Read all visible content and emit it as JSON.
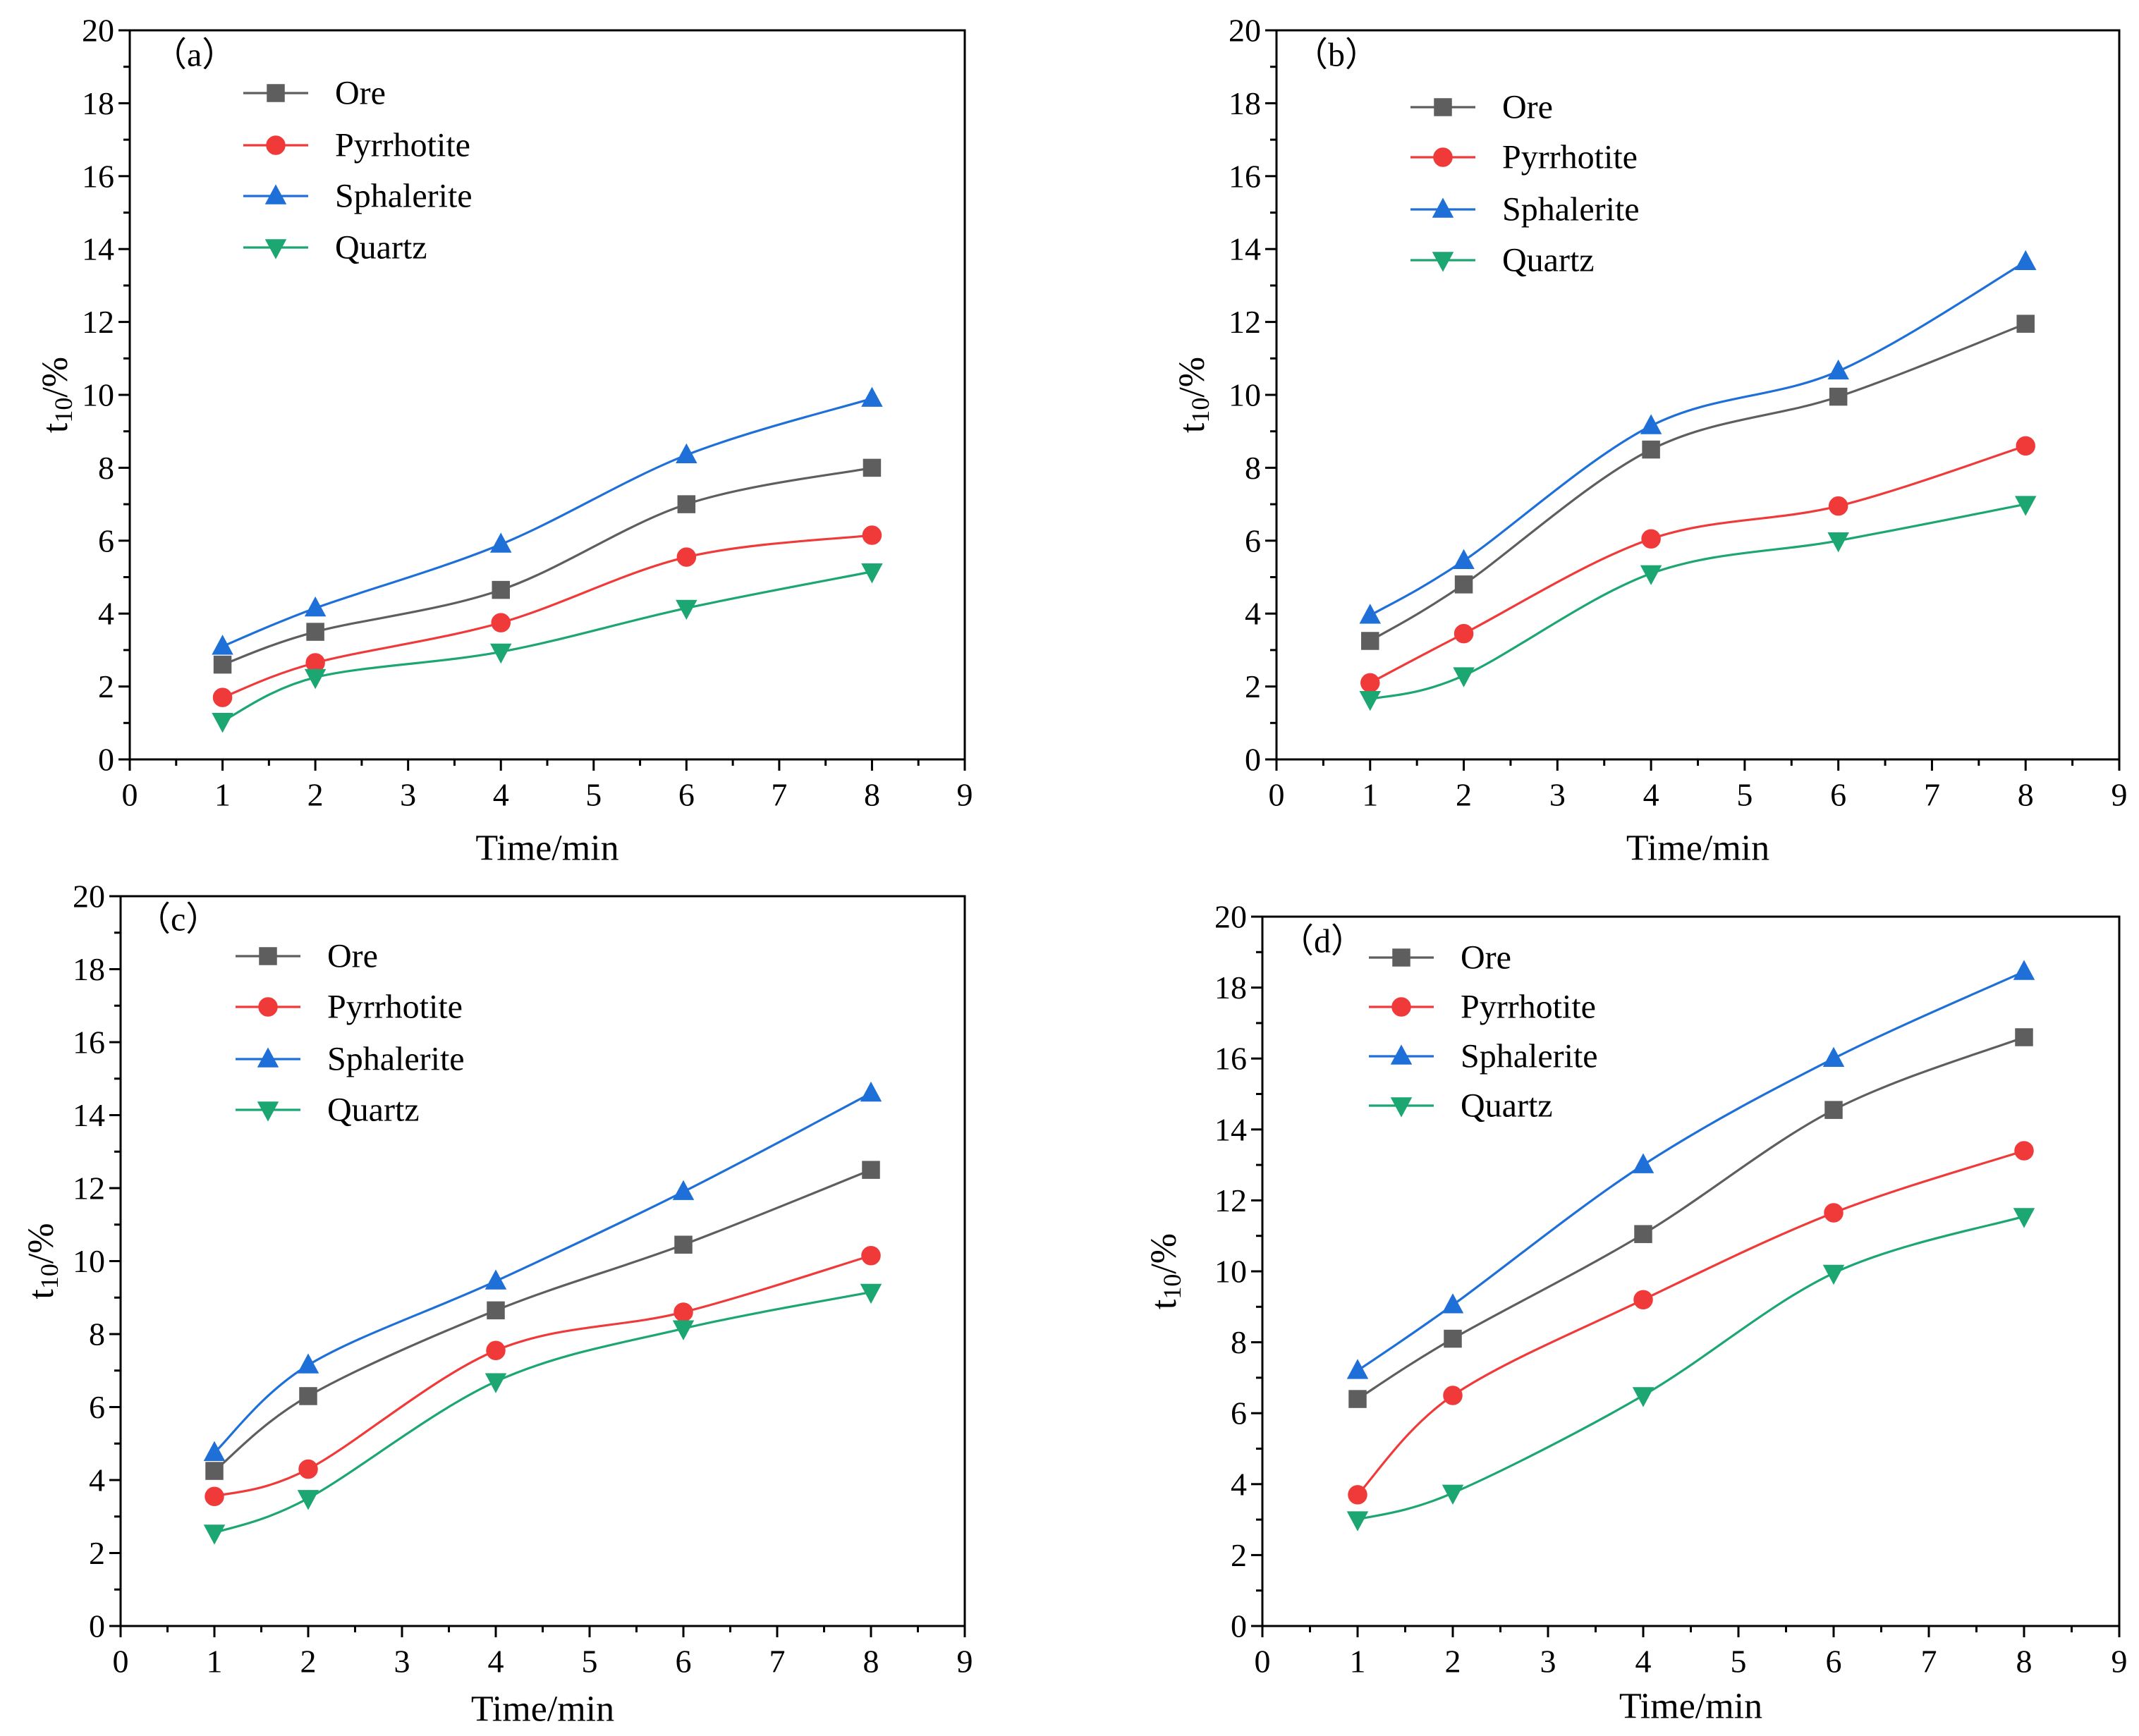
{
  "chart_data": [
    {
      "type": "line",
      "panel_label": "（a）",
      "title": "",
      "xlabel": "Time/min",
      "ylabel": {
        "base": "t",
        "sub": "10",
        "suffix": "/%"
      },
      "xlim": [
        0,
        9
      ],
      "ylim": [
        0,
        20
      ],
      "xticks": [
        0,
        1,
        2,
        3,
        4,
        5,
        6,
        7,
        8,
        9
      ],
      "yticks": [
        0,
        2,
        4,
        6,
        8,
        10,
        12,
        14,
        16,
        18,
        20
      ],
      "x": [
        1,
        2,
        4,
        6,
        8
      ],
      "series": [
        {
          "name": "Ore",
          "marker": "square",
          "color": "#5e5e5e",
          "values": [
            2.6,
            3.5,
            4.65,
            7.0,
            8.0
          ]
        },
        {
          "name": "Pyrrhotite",
          "marker": "circle",
          "color": "#f03a3a",
          "values": [
            1.7,
            2.65,
            3.75,
            5.55,
            6.15
          ]
        },
        {
          "name": "Sphalerite",
          "marker": "triangle-up",
          "color": "#1e70d8",
          "values": [
            3.1,
            4.15,
            5.9,
            8.35,
            9.9
          ]
        },
        {
          "name": "Quartz",
          "marker": "triangle-down",
          "color": "#1ba672",
          "values": [
            1.05,
            2.25,
            2.95,
            4.15,
            5.15
          ]
        }
      ]
    },
    {
      "type": "line",
      "panel_label": "（b）",
      "title": "",
      "xlabel": "Time/min",
      "ylabel": {
        "base": "t",
        "sub": "10",
        "suffix": "/%"
      },
      "xlim": [
        0,
        9
      ],
      "ylim": [
        0,
        20
      ],
      "xticks": [
        0,
        1,
        2,
        3,
        4,
        5,
        6,
        7,
        8,
        9
      ],
      "yticks": [
        0,
        2,
        4,
        6,
        8,
        10,
        12,
        14,
        16,
        18,
        20
      ],
      "x": [
        1,
        2,
        4,
        6,
        8
      ],
      "series": [
        {
          "name": "Ore",
          "marker": "square",
          "color": "#5e5e5e",
          "values": [
            3.25,
            4.8,
            8.5,
            9.95,
            11.95
          ]
        },
        {
          "name": "Pyrrhotite",
          "marker": "circle",
          "color": "#f03a3a",
          "values": [
            2.1,
            3.45,
            6.05,
            6.95,
            8.6
          ]
        },
        {
          "name": "Sphalerite",
          "marker": "triangle-up",
          "color": "#1e70d8",
          "values": [
            3.95,
            5.45,
            9.15,
            10.65,
            13.65
          ]
        },
        {
          "name": "Quartz",
          "marker": "triangle-down",
          "color": "#1ba672",
          "values": [
            1.65,
            2.3,
            5.1,
            6.0,
            7.0
          ]
        }
      ]
    },
    {
      "type": "line",
      "panel_label": "（c）",
      "title": "",
      "xlabel": "Time/min",
      "ylabel": {
        "base": "t",
        "sub": "10",
        "suffix": "/%"
      },
      "xlim": [
        0,
        9
      ],
      "ylim": [
        0,
        20
      ],
      "xticks": [
        0,
        1,
        2,
        3,
        4,
        5,
        6,
        7,
        8,
        9
      ],
      "yticks": [
        0,
        2,
        4,
        6,
        8,
        10,
        12,
        14,
        16,
        18,
        20
      ],
      "x": [
        1,
        2,
        4,
        6,
        8
      ],
      "series": [
        {
          "name": "Ore",
          "marker": "square",
          "color": "#5e5e5e",
          "values": [
            4.25,
            6.3,
            8.65,
            10.45,
            12.5
          ]
        },
        {
          "name": "Pyrrhotite",
          "marker": "circle",
          "color": "#f03a3a",
          "values": [
            3.55,
            4.3,
            7.55,
            8.6,
            10.15
          ]
        },
        {
          "name": "Sphalerite",
          "marker": "triangle-up",
          "color": "#1e70d8",
          "values": [
            4.75,
            7.15,
            9.45,
            11.9,
            14.6
          ]
        },
        {
          "name": "Quartz",
          "marker": "triangle-down",
          "color": "#1ba672",
          "values": [
            2.55,
            3.5,
            6.7,
            8.15,
            9.15
          ]
        }
      ]
    },
    {
      "type": "line",
      "panel_label": "（d）",
      "title": "",
      "xlabel": "Time/min",
      "ylabel": {
        "base": "t",
        "sub": "10",
        "suffix": "/%"
      },
      "xlim": [
        0,
        9
      ],
      "ylim": [
        0,
        20
      ],
      "xticks": [
        0,
        1,
        2,
        3,
        4,
        5,
        6,
        7,
        8,
        9
      ],
      "yticks": [
        0,
        2,
        4,
        6,
        8,
        10,
        12,
        14,
        16,
        18,
        20
      ],
      "x": [
        1,
        2,
        4,
        6,
        8
      ],
      "series": [
        {
          "name": "Ore",
          "marker": "square",
          "color": "#5e5e5e",
          "values": [
            6.4,
            8.1,
            11.05,
            14.55,
            16.6
          ]
        },
        {
          "name": "Pyrrhotite",
          "marker": "circle",
          "color": "#f03a3a",
          "values": [
            3.7,
            6.5,
            9.2,
            11.65,
            13.4
          ]
        },
        {
          "name": "Sphalerite",
          "marker": "triangle-up",
          "color": "#1e70d8",
          "values": [
            7.2,
            9.05,
            13.0,
            16.0,
            18.45
          ]
        },
        {
          "name": "Quartz",
          "marker": "triangle-down",
          "color": "#1ba672",
          "values": [
            3.0,
            3.75,
            6.5,
            9.95,
            11.55
          ]
        }
      ]
    }
  ]
}
